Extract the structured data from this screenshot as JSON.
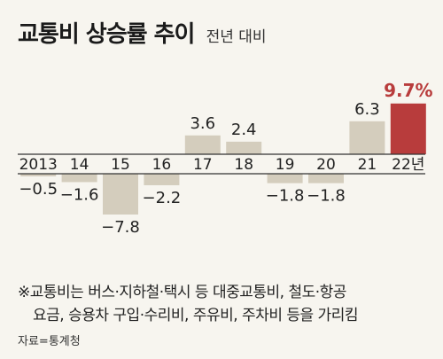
{
  "title": "교통비 상승률 추이",
  "subtitle": "전년 대비",
  "chart_data": {
    "type": "bar",
    "categories": [
      "2013",
      "14",
      "15",
      "16",
      "17",
      "18",
      "19",
      "20",
      "21",
      "22년"
    ],
    "values": [
      -0.5,
      -1.6,
      -7.8,
      -2.2,
      3.6,
      2.4,
      -1.8,
      -1.8,
      6.3,
      9.7
    ],
    "value_labels": [
      "-0.5",
      "-1.6",
      "-7.8",
      "-2.2",
      "3.6",
      "2.4",
      "-1.8",
      "-1.8",
      "6.3",
      "9.7%"
    ],
    "ylim": [
      -9.0,
      10.5
    ],
    "grid": false,
    "colors": {
      "bar": "#d4cdbd",
      "highlight": "#b83c3c",
      "axis": "#333333"
    },
    "highlight_index": 9
  },
  "notes": {
    "line1": "※교통비는 버스·지하철·택시 등 대중교통비, 철도·항공",
    "line2": "요금, 승용차 구입·수리비, 주유비, 주차비 등을 가리킴"
  },
  "source": "자료=통계청"
}
